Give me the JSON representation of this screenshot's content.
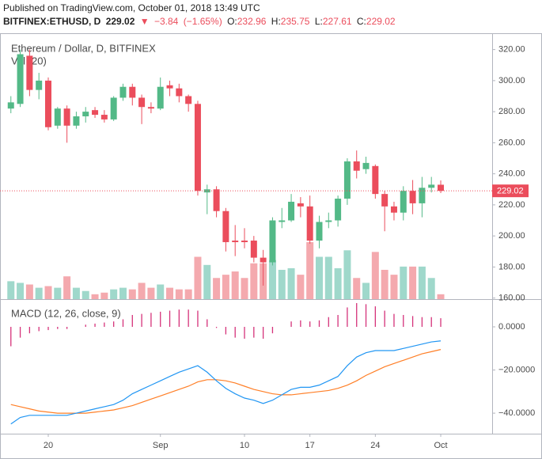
{
  "header": {
    "published": "Published on TradingView.com, October 01, 2018 13:49 UTC",
    "symbol": "BITFINEX:ETHUSD, D",
    "change": "−3.84",
    "change_pct": "(−1.65%)",
    "ohlc_labels": [
      "O:",
      "H:",
      "L:",
      "C:"
    ]
  },
  "chart_data": {
    "type": "candlestick",
    "title": "Ethereum / Dollar, D, BITFINEX",
    "volume_label": "Vol (20)",
    "categories": [
      null,
      null,
      null,
      null,
      "20",
      null,
      null,
      null,
      null,
      null,
      null,
      null,
      null,
      null,
      null,
      null,
      "Sep",
      null,
      null,
      null,
      null,
      null,
      null,
      null,
      null,
      "10",
      null,
      null,
      null,
      null,
      null,
      null,
      "17",
      null,
      null,
      null,
      null,
      null,
      null,
      "24",
      null,
      null,
      null,
      null,
      null,
      null,
      "Oct"
    ],
    "open": [
      282,
      285,
      316,
      294,
      300,
      271,
      282,
      271,
      277,
      281,
      278,
      275,
      289,
      296,
      289,
      283,
      282,
      297,
      295,
      290,
      285,
      228,
      230,
      216,
      197,
      197,
      197,
      186,
      183,
      209,
      210,
      221,
      219,
      197,
      209,
      210,
      224,
      248,
      243,
      245,
      227,
      219,
      215,
      229,
      221,
      231,
      232.96
    ],
    "high": [
      290,
      320,
      320,
      305,
      302,
      283,
      284,
      280,
      283,
      283,
      281,
      290,
      298,
      298,
      291,
      286,
      302,
      300,
      298,
      291,
      287,
      233,
      232,
      218,
      207,
      205,
      200,
      191,
      212,
      218,
      227,
      225,
      226,
      213,
      215,
      226,
      250,
      255,
      251,
      246,
      229,
      222,
      232,
      236,
      238,
      238,
      235.75
    ],
    "low": [
      279,
      283,
      290,
      288,
      268,
      269,
      260,
      269,
      273,
      276,
      273,
      274,
      287,
      284,
      272,
      279,
      281,
      290,
      286,
      280,
      226,
      214,
      212,
      190,
      187,
      192,
      183,
      168,
      181,
      205,
      209,
      212,
      195,
      192,
      205,
      206,
      220,
      237,
      240,
      224,
      203,
      210,
      210,
      214,
      212,
      228,
      227.61
    ],
    "close": [
      286,
      317,
      294,
      300,
      270,
      282,
      271,
      277,
      280,
      278,
      275,
      289,
      296,
      289,
      283,
      282,
      296,
      295,
      290,
      285,
      229,
      230,
      216,
      196,
      196,
      196,
      186,
      183,
      210,
      210,
      222,
      219,
      197,
      209,
      210,
      224,
      248,
      242,
      247,
      227,
      219,
      215,
      229,
      221,
      231,
      233,
      229.02
    ],
    "volume": [
      22,
      20,
      18,
      14,
      16,
      14,
      28,
      14,
      10,
      6,
      8,
      12,
      14,
      12,
      20,
      14,
      18,
      14,
      12,
      12,
      52,
      42,
      26,
      30,
      34,
      26,
      44,
      44,
      48,
      36,
      38,
      30,
      70,
      52,
      52,
      38,
      60,
      26,
      20,
      58,
      36,
      30,
      40,
      40,
      40,
      26,
      6
    ],
    "up_color": "#53b987",
    "down_color": "#eb4d5c",
    "volume_up_color": "#9fd8cb",
    "volume_down_color": "#f4a9ae",
    "ylim": [
      159.3,
      330.5
    ],
    "yticks": [
      {
        "value": 160,
        "label": "160.00"
      },
      {
        "value": 180,
        "label": "180.00"
      },
      {
        "value": 200,
        "label": "200.00"
      },
      {
        "value": 220,
        "label": "220.00"
      },
      {
        "value": 240,
        "label": "240.00"
      },
      {
        "value": 260,
        "label": "260.00"
      },
      {
        "value": 280,
        "label": "280.00"
      },
      {
        "value": 300,
        "label": "300.00"
      },
      {
        "value": 320,
        "label": "320.00"
      }
    ],
    "grid": false,
    "macd": {
      "title": "MACD (12, 26, close, 9)",
      "ylim": [
        -49.5,
        12.1
      ],
      "yticks": [
        {
          "value": 0,
          "label": "0.0000"
        },
        {
          "value": -20,
          "label": "−20.0000"
        },
        {
          "value": -40,
          "label": "−40.0000"
        }
      ],
      "macd": [
        -45,
        -42,
        -41,
        -41,
        -41,
        -41,
        -41,
        -40,
        -39,
        -38,
        -37,
        -36,
        -34,
        -31,
        -29,
        -27,
        -25,
        -23,
        -21,
        -19.5,
        -18,
        -21,
        -25,
        -28.5,
        -31,
        -33,
        -34,
        -35.5,
        -34,
        -31.5,
        -29,
        -28,
        -28,
        -27,
        -25,
        -23,
        -18,
        -14,
        -12,
        -11,
        -11,
        -11,
        -10,
        -9,
        -8,
        -7,
        -6.5
      ],
      "signal": [
        -36,
        -37,
        -38,
        -39,
        -39.5,
        -40,
        -40,
        -40,
        -40,
        -39.5,
        -39,
        -38.5,
        -37.5,
        -36.5,
        -35,
        -33.5,
        -32,
        -30.5,
        -29,
        -27.5,
        -25.5,
        -24.5,
        -24.5,
        -25,
        -26,
        -27.5,
        -29,
        -30,
        -31,
        -31.5,
        -31.5,
        -31,
        -30.5,
        -30,
        -29.5,
        -28.5,
        -27,
        -25,
        -22.5,
        -20.5,
        -18.5,
        -17,
        -15.5,
        -14,
        -12.5,
        -11.5,
        -10.5
      ],
      "histogram": [
        -9,
        -5,
        -3,
        -2,
        -1.5,
        -1,
        -1,
        0,
        1,
        1.5,
        2,
        2.5,
        3.5,
        5.5,
        6,
        6.5,
        7,
        7.5,
        8,
        8,
        7.5,
        3.5,
        -0.5,
        -3.5,
        -5,
        -5.5,
        -5,
        -5.5,
        -3,
        0,
        2.5,
        3,
        2.5,
        3,
        4.5,
        5.5,
        9,
        11,
        10.5,
        9.5,
        7.5,
        6,
        5.5,
        5,
        4.5,
        4.5,
        4
      ],
      "macd_color": "#2196f3",
      "signal_color": "#ff7f27",
      "histogram_color": "#d5327a"
    }
  }
}
